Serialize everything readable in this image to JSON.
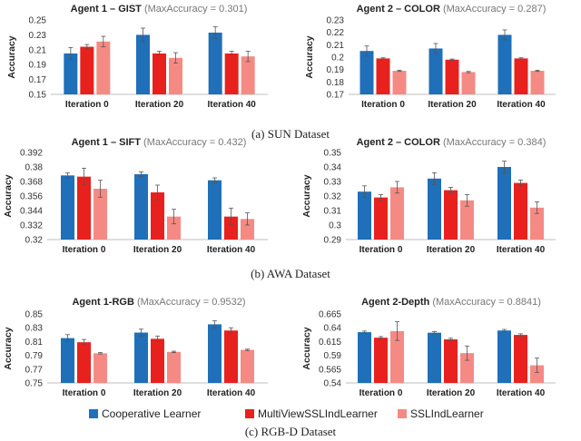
{
  "legend": [
    {
      "name": "Cooperative Learner",
      "color": "#1f6fb9"
    },
    {
      "name": "MultiViewSSLIndLearner",
      "color": "#e8211e"
    },
    {
      "name": "SSLIndLearner",
      "color": "#f58a84"
    }
  ],
  "captions": [
    "(a) SUN Dataset",
    "(b) AWA Dataset",
    "(c) RGB-D Dataset"
  ],
  "chart_data": [
    {
      "type": "bar",
      "id": "sun-gist",
      "title_bold": "Agent 1 – GIST",
      "title_rest": " (MaxAccuracy = 0.301)",
      "ylabel": "Accuracy",
      "categories": [
        "Iteration 0",
        "Iteration 20",
        "Iteration 40"
      ],
      "ylim": [
        0.15,
        0.25
      ],
      "yticks": [
        0.15,
        0.17,
        0.19,
        0.21,
        0.23,
        0.25
      ],
      "ytick_labels": [
        "0.15",
        "0.17",
        "0.19",
        "0.21",
        "0.23",
        "0.25"
      ],
      "series": [
        {
          "name": "Cooperative Learner",
          "values": [
            0.205,
            0.23,
            0.233
          ],
          "errors": [
            0.008,
            0.009,
            0.008
          ]
        },
        {
          "name": "MultiViewSSLIndLearner",
          "values": [
            0.214,
            0.205,
            0.205
          ],
          "errors": [
            0.003,
            0.003,
            0.003
          ]
        },
        {
          "name": "SSLIndLearner",
          "values": [
            0.221,
            0.199,
            0.201
          ],
          "errors": [
            0.007,
            0.007,
            0.007
          ]
        }
      ]
    },
    {
      "type": "bar",
      "id": "sun-color",
      "title_bold": "Agent 2 – COLOR",
      "title_rest": " (MaxAccuracy = 0.287)",
      "ylabel": "Accuracy",
      "categories": [
        "Iteration 0",
        "Iteration 20",
        "Iteration 40"
      ],
      "ylim": [
        0.17,
        0.23
      ],
      "yticks": [
        0.17,
        0.18,
        0.19,
        0.2,
        0.21,
        0.22,
        0.23
      ],
      "ytick_labels": [
        "0.17",
        "0.18",
        "0.19",
        "0.2",
        "0.21",
        "0.22",
        "0.23"
      ],
      "series": [
        {
          "name": "Cooperative Learner",
          "values": [
            0.205,
            0.207,
            0.218
          ],
          "errors": [
            0.004,
            0.004,
            0.004
          ]
        },
        {
          "name": "MultiViewSSLIndLearner",
          "values": [
            0.199,
            0.198,
            0.199
          ],
          "errors": [
            0.0005,
            0.0005,
            0.0005
          ]
        },
        {
          "name": "SSLIndLearner",
          "values": [
            0.189,
            0.188,
            0.189
          ],
          "errors": [
            0.0005,
            0.0005,
            0.0005
          ]
        }
      ]
    },
    {
      "type": "bar",
      "id": "awa-sift",
      "title_bold": "Agent 1 – SIFT",
      "title_rest": " (MaxAccuracy = 0.432)",
      "ylabel": "Accuracy",
      "categories": [
        "Iteration 0",
        "Iteration 20",
        "Iteration 40"
      ],
      "ylim": [
        0.32,
        0.392
      ],
      "yticks": [
        0.32,
        0.332,
        0.344,
        0.356,
        0.368,
        0.38,
        0.392
      ],
      "ytick_labels": [
        "0.32",
        "0.332",
        "0.344",
        "0.356",
        "0.368",
        "0.38",
        "0.392"
      ],
      "series": [
        {
          "name": "Cooperative Learner",
          "values": [
            0.373,
            0.374,
            0.369
          ],
          "errors": [
            0.002,
            0.002,
            0.002
          ]
        },
        {
          "name": "MultiViewSSLIndLearner",
          "values": [
            0.372,
            0.359,
            0.339
          ],
          "errors": [
            0.007,
            0.006,
            0.007
          ]
        },
        {
          "name": "SSLIndLearner",
          "values": [
            0.362,
            0.339,
            0.337
          ],
          "errors": [
            0.007,
            0.006,
            0.005
          ]
        }
      ]
    },
    {
      "type": "bar",
      "id": "awa-color",
      "title_bold": "Agent 2 – COLOR",
      "title_rest": " (MaxAccuracy = 0.384)",
      "ylabel": "Accuracy",
      "categories": [
        "Iteration 0",
        "Iteration 20",
        "Iteration 40"
      ],
      "ylim": [
        0.29,
        0.35
      ],
      "yticks": [
        0.29,
        0.3,
        0.31,
        0.32,
        0.33,
        0.34,
        0.35
      ],
      "ytick_labels": [
        "0.29",
        "0.3",
        "0.31",
        "0.32",
        "0.33",
        "0.34",
        "0.35"
      ],
      "series": [
        {
          "name": "Cooperative Learner",
          "values": [
            0.323,
            0.332,
            0.34
          ],
          "errors": [
            0.004,
            0.004,
            0.004
          ]
        },
        {
          "name": "MultiViewSSLIndLearner",
          "values": [
            0.319,
            0.324,
            0.329
          ],
          "errors": [
            0.002,
            0.002,
            0.002
          ]
        },
        {
          "name": "SSLIndLearner",
          "values": [
            0.326,
            0.317,
            0.312
          ],
          "errors": [
            0.004,
            0.004,
            0.004
          ]
        }
      ]
    },
    {
      "type": "bar",
      "id": "rgbd-rgb",
      "title_bold": "Agent 1-RGB",
      "title_rest": " (MaxAccuracy = 0.9532)",
      "ylabel": "Accuracy",
      "categories": [
        "Iteration 0",
        "Iteration 20",
        "Iteration 40"
      ],
      "ylim": [
        0.75,
        0.85
      ],
      "yticks": [
        0.75,
        0.77,
        0.79,
        0.81,
        0.83,
        0.85
      ],
      "ytick_labels": [
        "0.75",
        "0.77",
        "0.79",
        "0.81",
        "0.83",
        "0.85"
      ],
      "series": [
        {
          "name": "Cooperative Learner",
          "values": [
            0.815,
            0.823,
            0.835
          ],
          "errors": [
            0.005,
            0.005,
            0.005
          ]
        },
        {
          "name": "MultiViewSSLIndLearner",
          "values": [
            0.809,
            0.814,
            0.826
          ],
          "errors": [
            0.004,
            0.004,
            0.004
          ]
        },
        {
          "name": "SSLIndLearner",
          "values": [
            0.793,
            0.795,
            0.798
          ],
          "errors": [
            0.001,
            0.001,
            0.001
          ]
        }
      ]
    },
    {
      "type": "bar",
      "id": "rgbd-depth",
      "title_bold": "Agent 2-Depth",
      "title_rest": " (MaxAccuracy = 0.8841)",
      "ylabel": "Accuracy",
      "categories": [
        "Iteration 0",
        "Iteration 20",
        "Iteration 40"
      ],
      "ylim": [
        0.54,
        0.665
      ],
      "yticks": [
        0.54,
        0.565,
        0.59,
        0.615,
        0.64,
        0.665
      ],
      "ytick_labels": [
        "0.54",
        "0.565",
        "0.59",
        "0.615",
        "0.64",
        "0.665"
      ],
      "series": [
        {
          "name": "Cooperative Learner",
          "values": [
            0.632,
            0.631,
            0.635
          ],
          "errors": [
            0.002,
            0.002,
            0.002
          ]
        },
        {
          "name": "MultiViewSSLIndLearner",
          "values": [
            0.622,
            0.619,
            0.627
          ],
          "errors": [
            0.002,
            0.002,
            0.002
          ]
        },
        {
          "name": "SSLIndLearner",
          "values": [
            0.634,
            0.594,
            0.572
          ],
          "errors": [
            0.017,
            0.013,
            0.013
          ]
        }
      ]
    }
  ]
}
